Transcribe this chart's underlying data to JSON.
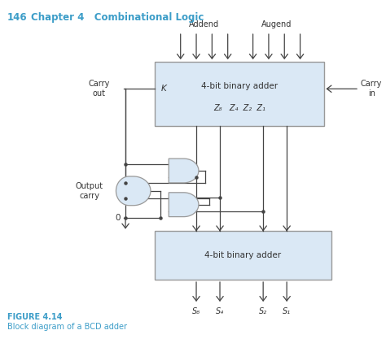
{
  "chapter_text": "146",
  "chapter_label": "Chapter 4   Combinational Logic",
  "figure_label": "FIGURE 4.14",
  "figure_caption": "Block diagram of a BCD adder",
  "box1_label": "4-bit binary adder",
  "box1_sublabel": "Z₈   Z₄  Z₂  Z₁",
  "box2_label": "4-bit binary adder",
  "addend_label": "Addend",
  "augend_label": "Augend",
  "carry_out_label": "Carry\nout",
  "carry_in_label": "Carry\nin",
  "output_carry_label": "Output\ncarry",
  "zero_label": "0",
  "k_label": "K",
  "s_labels": [
    "S₈",
    "S₄",
    "S₂",
    "S₁"
  ],
  "bg_color": "#ffffff",
  "box_fill": "#dae8f5",
  "box_edge": "#999999",
  "line_color": "#444444",
  "gate_fill": "#dae8f5",
  "gate_edge": "#999999",
  "title_color": "#3c9dc8",
  "text_color": "#333333"
}
